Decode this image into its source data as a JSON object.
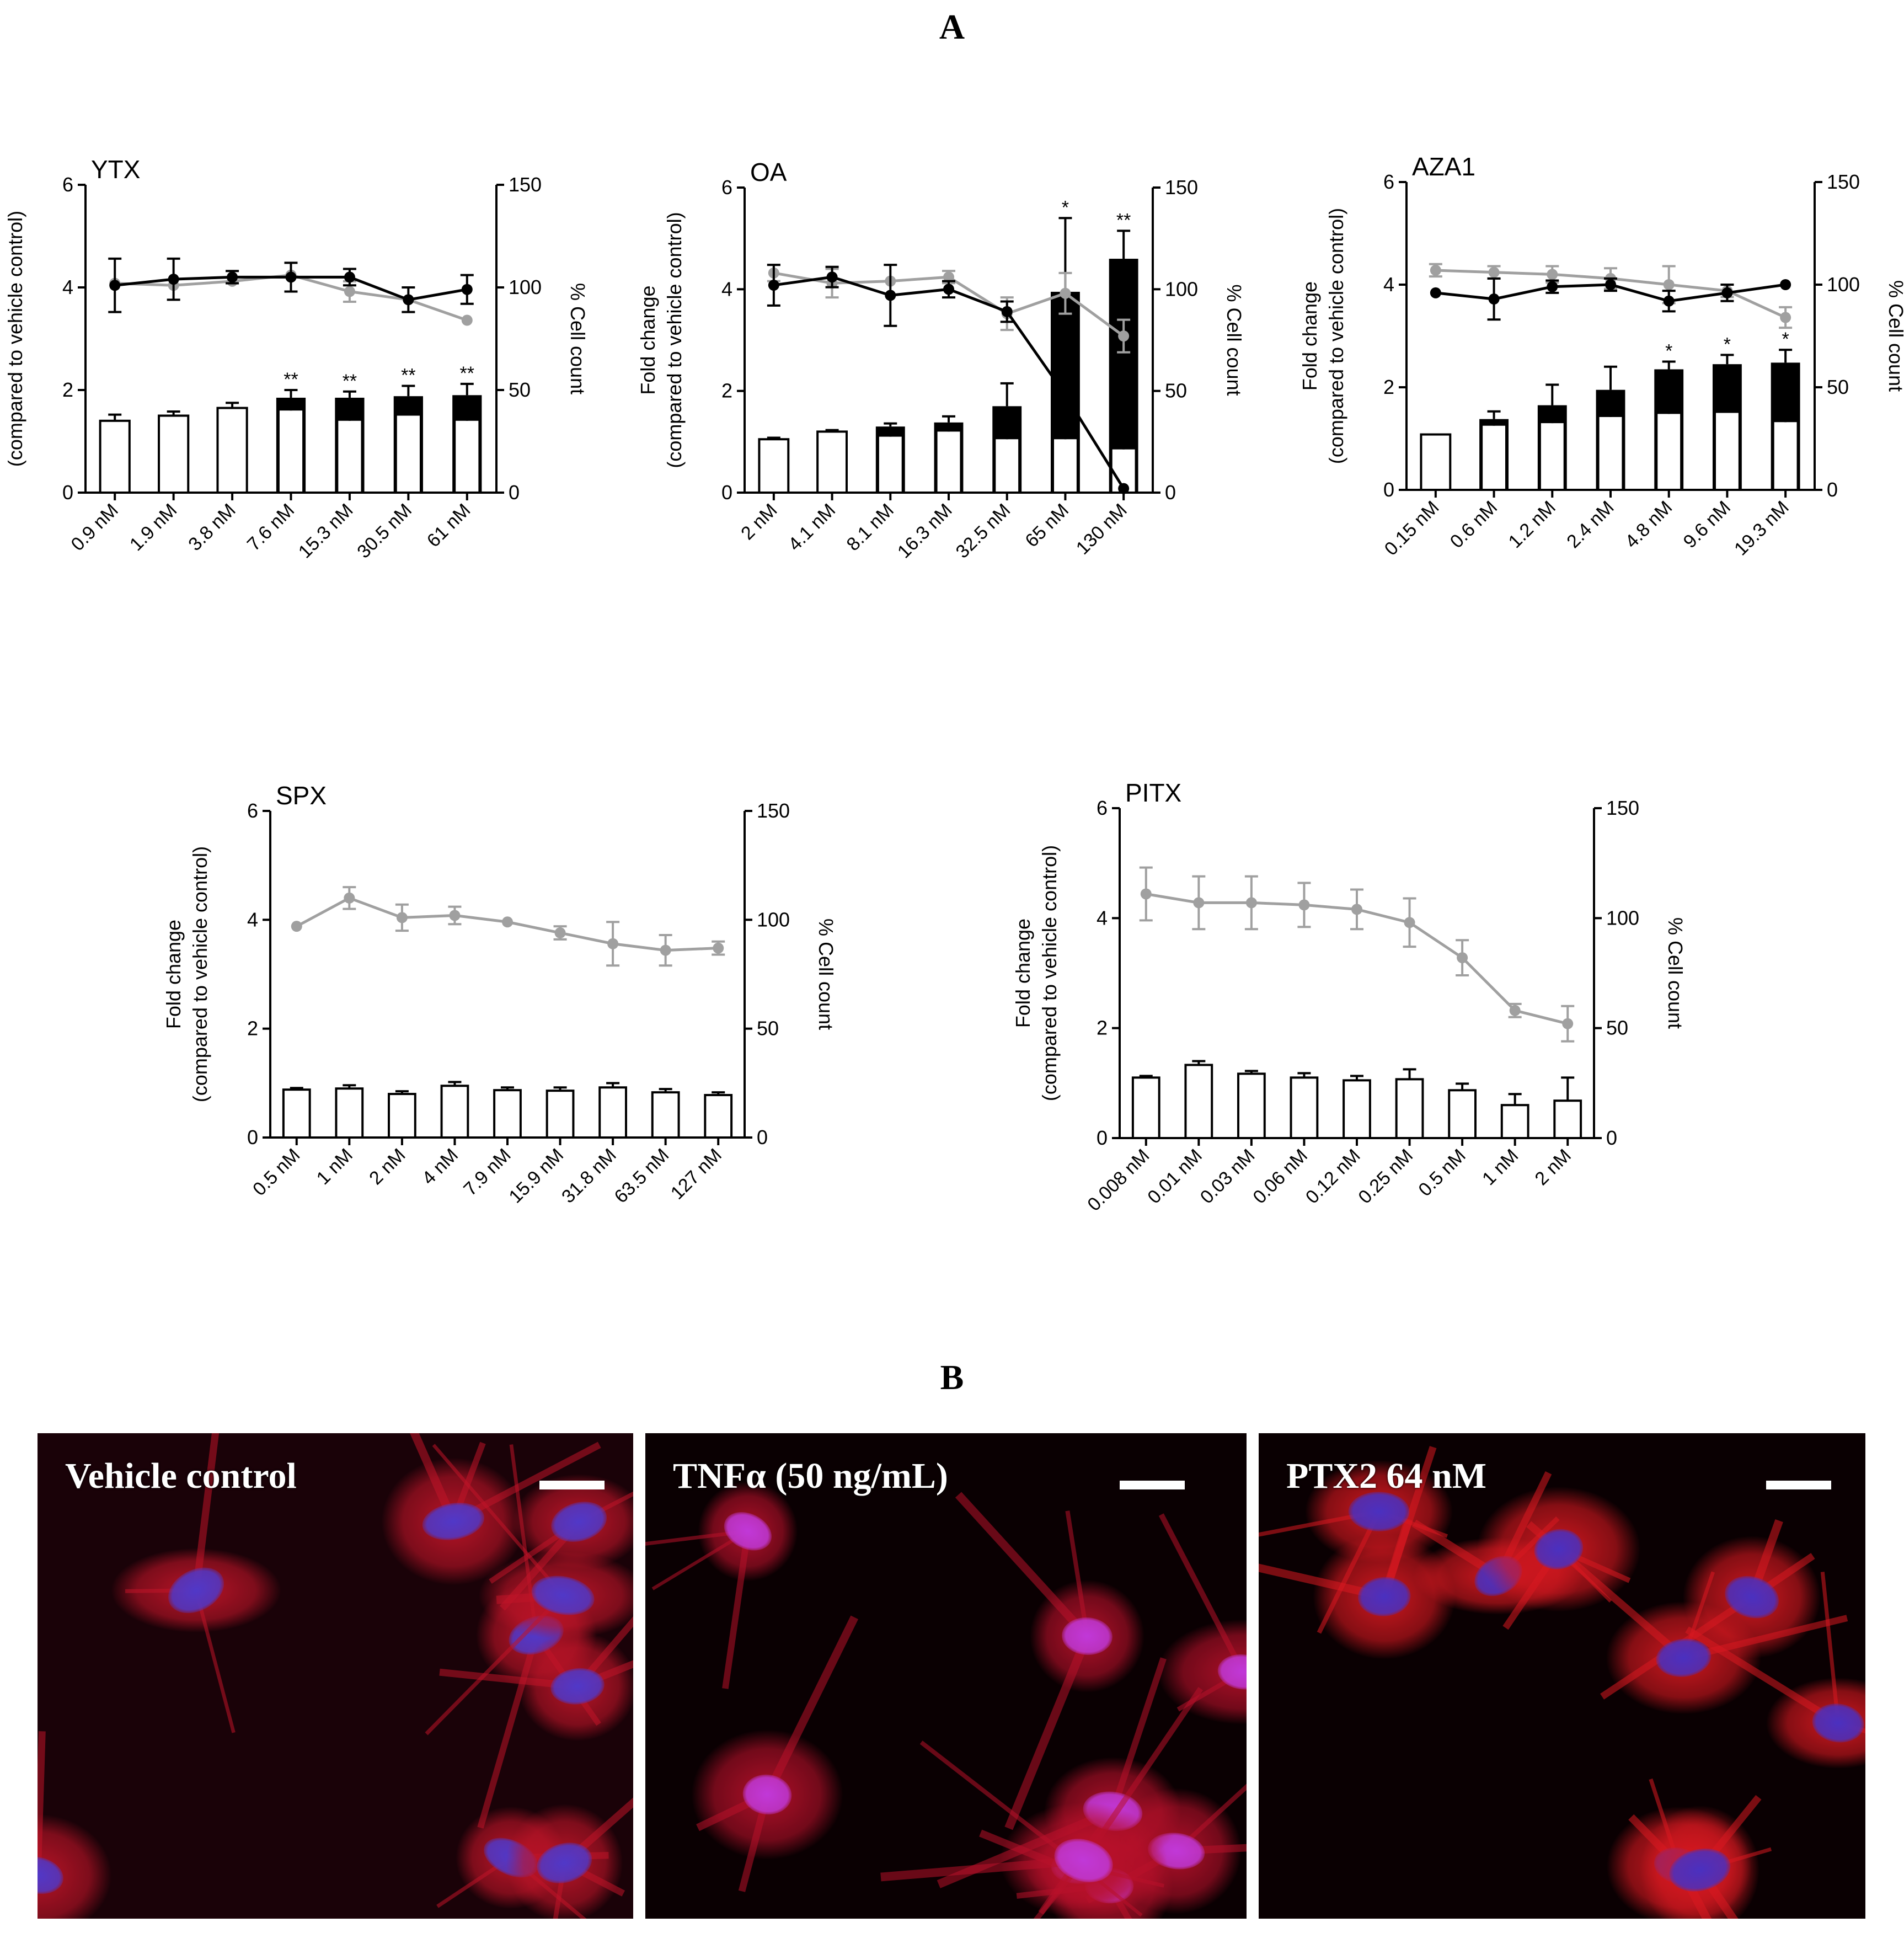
{
  "panel_labels": {
    "a": "A",
    "b": "B"
  },
  "common": {
    "y_left_label_line1": "Fold change",
    "y_left_label_line2": "(compared to vehicle control)",
    "y_right_label": "% Cell count"
  },
  "chart_data": [
    {
      "type": "bar+line",
      "title": "YTX",
      "categories": [
        "0.9 nM",
        "1.9 nM",
        "3.8 nM",
        "7.6 nM",
        "15.3 nM",
        "30.5 nM",
        "61 nM"
      ],
      "y_left_ticks": [
        "0",
        "2",
        "4",
        "6"
      ],
      "ylim_left": [
        0,
        6
      ],
      "y_right_ticks": [
        "0",
        "50",
        "100",
        "150"
      ],
      "ylim_right": [
        0,
        150
      ],
      "white_bars": [
        1.4,
        1.5,
        1.65,
        1.6,
        1.4,
        1.5,
        1.4
      ],
      "white_bar_err": [
        0.12,
        0.08,
        0.1,
        0.1,
        0.1,
        0.1,
        0.1
      ],
      "black_bars": [
        0,
        0,
        0,
        1.85,
        1.85,
        1.88,
        1.9
      ],
      "black_bar_err": [
        0,
        0,
        0,
        0.15,
        0.12,
        0.2,
        0.22
      ],
      "significance": [
        "",
        "",
        "",
        "**",
        "**",
        "**",
        "**"
      ],
      "line_black": [
        101,
        104,
        105,
        105,
        105,
        94,
        99
      ],
      "line_black_err": [
        13,
        10,
        3,
        7,
        4,
        6,
        7
      ],
      "line_gray": [
        102,
        101,
        103,
        106,
        98,
        94,
        84
      ],
      "line_gray_err": [
        0,
        0,
        0,
        0,
        5,
        0,
        0
      ]
    },
    {
      "type": "bar+line",
      "title": "OA",
      "categories": [
        "2 nM",
        "4.1 nM",
        "8.1 nM",
        "16.3 nM",
        "32.5 nM",
        "65 nM",
        "130 nM"
      ],
      "y_left_ticks": [
        "0",
        "2",
        "4",
        "6"
      ],
      "ylim_left": [
        0,
        6
      ],
      "y_right_ticks": [
        "0",
        "50",
        "100",
        "150"
      ],
      "ylim_right": [
        0,
        150
      ],
      "white_bars": [
        1.05,
        1.2,
        1.1,
        1.2,
        1.05,
        1.05,
        0.85
      ],
      "white_bar_err": [
        0.03,
        0.03,
        0.08,
        0.08,
        0.05,
        0.1,
        0.05
      ],
      "black_bars": [
        0,
        0,
        1.3,
        1.38,
        1.7,
        3.95,
        4.6
      ],
      "black_bar_err": [
        0,
        0,
        0.06,
        0.12,
        0.45,
        1.45,
        0.55
      ],
      "significance": [
        "",
        "",
        "",
        "",
        "",
        "*",
        "**"
      ],
      "line_black": [
        102,
        106,
        97,
        100,
        89,
        48,
        2
      ],
      "line_black_err": [
        10,
        5,
        15,
        4,
        5,
        0,
        0
      ],
      "line_gray": [
        108,
        103,
        104,
        106,
        88,
        98,
        77
      ],
      "line_gray_err": [
        4,
        7,
        0,
        3,
        8,
        10,
        8
      ]
    },
    {
      "type": "bar+line",
      "title": "AZA1",
      "categories": [
        "0.15 nM",
        "0.6 nM",
        "1.2 nM",
        "2.4 nM",
        "4.8 nM",
        "9.6 nM",
        "19.3 nM"
      ],
      "y_left_ticks": [
        "0",
        "2",
        "4",
        "6"
      ],
      "ylim_left": [
        0,
        6
      ],
      "y_right_ticks": [
        "0",
        "50",
        "100",
        "150"
      ],
      "ylim_right": [
        0,
        150
      ],
      "white_bars": [
        1.08,
        1.25,
        1.3,
        1.42,
        1.48,
        1.5,
        1.32
      ],
      "white_bar_err": [
        0,
        0.05,
        0.08,
        0.05,
        0.04,
        0.08,
        0.03
      ],
      "black_bars": [
        0,
        1.38,
        1.65,
        1.95,
        2.35,
        2.45,
        2.48
      ],
      "black_bar_err": [
        0,
        0.15,
        0.4,
        0.45,
        0.15,
        0.18,
        0.25
      ],
      "significance": [
        "",
        "",
        "",
        "",
        "*",
        "*",
        "*"
      ],
      "line_black": [
        96,
        93,
        99,
        100,
        92,
        96,
        100
      ],
      "line_black_err": [
        0,
        10,
        3,
        3,
        5,
        4,
        0
      ],
      "line_gray": [
        107,
        106,
        105,
        103,
        100,
        97,
        84
      ],
      "line_gray_err": [
        3,
        3,
        4,
        5,
        9,
        3,
        5
      ]
    },
    {
      "type": "bar+line",
      "title": "SPX",
      "categories": [
        "0.5 nM",
        "1 nM",
        "2 nM",
        "4 nM",
        "7.9 nM",
        "15.9 nM",
        "31.8 nM",
        "63.5 nM",
        "127 nM"
      ],
      "y_left_ticks": [
        "0",
        "2",
        "4",
        "6"
      ],
      "ylim_left": [
        0,
        6
      ],
      "y_right_ticks": [
        "0",
        "50",
        "100",
        "150"
      ],
      "ylim_right": [
        0,
        150
      ],
      "white_bars": [
        0.88,
        0.9,
        0.8,
        0.95,
        0.87,
        0.86,
        0.92,
        0.83,
        0.78
      ],
      "white_bar_err": [
        0.03,
        0.06,
        0.05,
        0.07,
        0.05,
        0.06,
        0.08,
        0.06,
        0.05
      ],
      "black_bars": [
        0,
        0,
        0,
        0,
        0,
        0,
        0,
        0,
        0
      ],
      "black_bar_err": [
        0,
        0,
        0,
        0,
        0,
        0,
        0,
        0,
        0
      ],
      "significance": [
        "",
        "",
        "",
        "",
        "",
        "",
        "",
        "",
        ""
      ],
      "line_black": [],
      "line_black_err": [],
      "line_gray": [
        97,
        110,
        101,
        102,
        99,
        94,
        89,
        86,
        87
      ],
      "line_gray_err": [
        0,
        5,
        6,
        4,
        0,
        3,
        10,
        7,
        3
      ]
    },
    {
      "type": "bar+line",
      "title": "PITX",
      "categories": [
        "0.008 nM",
        "0.01 nM",
        "0.03 nM",
        "0.06 nM",
        "0.12 nM",
        "0.25 nM",
        "0.5 nM",
        "1 nM",
        "2 nM"
      ],
      "y_left_ticks": [
        "0",
        "2",
        "4",
        "6"
      ],
      "ylim_left": [
        0,
        6
      ],
      "y_right_ticks": [
        "0",
        "50",
        "100",
        "150"
      ],
      "ylim_right": [
        0,
        150
      ],
      "white_bars": [
        1.1,
        1.33,
        1.17,
        1.1,
        1.05,
        1.07,
        0.87,
        0.6,
        0.68
      ],
      "white_bar_err": [
        0.03,
        0.07,
        0.05,
        0.08,
        0.08,
        0.18,
        0.12,
        0.2,
        0.42
      ],
      "black_bars": [
        0,
        0,
        0,
        0,
        0,
        0,
        0,
        0,
        0
      ],
      "black_bar_err": [
        0,
        0,
        0,
        0,
        0,
        0,
        0,
        0,
        0
      ],
      "significance": [
        "",
        "",
        "",
        "",
        "",
        "",
        "",
        "",
        ""
      ],
      "line_black": [],
      "line_black_err": [],
      "line_gray": [
        111,
        107,
        107,
        106,
        104,
        98,
        82,
        58,
        52
      ],
      "line_gray_err": [
        12,
        12,
        12,
        10,
        9,
        11,
        8,
        3,
        8
      ]
    }
  ],
  "micrographs": [
    {
      "label": "Vehicle control",
      "colors": {
        "cell": "#c01428",
        "nucleus": "#5038c8"
      }
    },
    {
      "label": "TNFα  (50 ng/mL)",
      "colors": {
        "cell": "#b8102a",
        "nucleus": "#c038d8"
      }
    },
    {
      "label": "PTX2 64 nM",
      "colors": {
        "cell": "#d81820",
        "nucleus": "#4a30c0"
      }
    }
  ]
}
